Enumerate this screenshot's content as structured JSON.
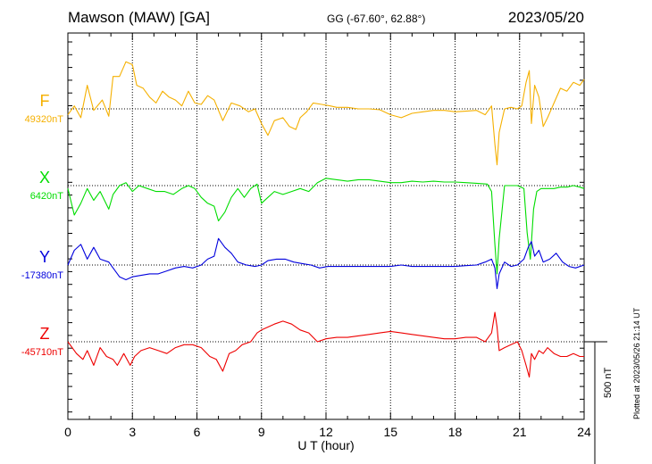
{
  "header": {
    "title": "Mawson (MAW)  [GA]",
    "coords": "GG (-67.60°,  62.88°)",
    "date": "2023/05/20"
  },
  "chart_data": {
    "type": "line",
    "xlabel": "U T (hour)",
    "xlim": [
      0,
      24
    ],
    "x_ticks": [
      "0",
      "3",
      "6",
      "9",
      "12",
      "15",
      "18",
      "21",
      "24"
    ],
    "grid": true,
    "scale_bar": "500 nT",
    "plotted_note": "Plotted at 2023/05/26 21:14 UT",
    "series": [
      {
        "name": "F",
        "baseline_label": "49320nT",
        "color": "#f5b000",
        "points": [
          [
            0,
            -20
          ],
          [
            0.3,
            10
          ],
          [
            0.6,
            -30
          ],
          [
            0.9,
            80
          ],
          [
            1.2,
            -5
          ],
          [
            1.6,
            30
          ],
          [
            1.9,
            -25
          ],
          [
            2.1,
            110
          ],
          [
            2.4,
            110
          ],
          [
            2.7,
            160
          ],
          [
            3.0,
            150
          ],
          [
            3.2,
            80
          ],
          [
            3.5,
            70
          ],
          [
            3.8,
            40
          ],
          [
            4.1,
            20
          ],
          [
            4.4,
            60
          ],
          [
            4.7,
            40
          ],
          [
            5.0,
            30
          ],
          [
            5.3,
            10
          ],
          [
            5.6,
            60
          ],
          [
            5.9,
            20
          ],
          [
            6.2,
            15
          ],
          [
            6.5,
            45
          ],
          [
            6.8,
            30
          ],
          [
            7.2,
            -40
          ],
          [
            7.6,
            20
          ],
          [
            8.0,
            10
          ],
          [
            8.4,
            -10
          ],
          [
            8.7,
            0
          ],
          [
            9.0,
            -50
          ],
          [
            9.3,
            -90
          ],
          [
            9.6,
            -40
          ],
          [
            10.0,
            -30
          ],
          [
            10.3,
            -60
          ],
          [
            10.6,
            -70
          ],
          [
            10.8,
            -30
          ],
          [
            11.1,
            -10
          ],
          [
            11.4,
            20
          ],
          [
            11.8,
            15
          ],
          [
            12.2,
            10
          ],
          [
            12.5,
            5
          ],
          [
            13.0,
            5
          ],
          [
            13.5,
            0
          ],
          [
            14.0,
            0
          ],
          [
            14.5,
            -3
          ],
          [
            15.0,
            -20
          ],
          [
            15.5,
            -30
          ],
          [
            16.0,
            -15
          ],
          [
            16.5,
            -10
          ],
          [
            17.0,
            -5
          ],
          [
            17.5,
            -5
          ],
          [
            18.0,
            -10
          ],
          [
            18.5,
            -8
          ],
          [
            19.0,
            -5
          ],
          [
            19.4,
            -20
          ],
          [
            19.7,
            10
          ],
          [
            19.85,
            -120
          ],
          [
            19.95,
            -190
          ],
          [
            20.05,
            -80
          ],
          [
            20.3,
            0
          ],
          [
            20.6,
            5
          ],
          [
            20.9,
            0
          ],
          [
            21.1,
            10
          ],
          [
            21.3,
            90
          ],
          [
            21.45,
            130
          ],
          [
            21.55,
            -50
          ],
          [
            21.7,
            80
          ],
          [
            21.9,
            40
          ],
          [
            22.1,
            -60
          ],
          [
            22.3,
            -30
          ],
          [
            22.6,
            20
          ],
          [
            22.9,
            70
          ],
          [
            23.2,
            60
          ],
          [
            23.5,
            90
          ],
          [
            23.8,
            80
          ],
          [
            24.0,
            100
          ]
        ]
      },
      {
        "name": "X",
        "baseline_label": "6420nT",
        "color": "#00dd00",
        "points": [
          [
            0,
            -10
          ],
          [
            0.3,
            -100
          ],
          [
            0.6,
            -60
          ],
          [
            0.9,
            -10
          ],
          [
            1.2,
            -50
          ],
          [
            1.5,
            -20
          ],
          [
            1.9,
            -80
          ],
          [
            2.1,
            -30
          ],
          [
            2.4,
            0
          ],
          [
            2.7,
            10
          ],
          [
            3.0,
            -20
          ],
          [
            3.3,
            0
          ],
          [
            3.7,
            -10
          ],
          [
            4.1,
            -20
          ],
          [
            4.5,
            -20
          ],
          [
            4.9,
            -30
          ],
          [
            5.3,
            -10
          ],
          [
            5.6,
            0
          ],
          [
            5.9,
            -10
          ],
          [
            6.2,
            -40
          ],
          [
            6.5,
            -60
          ],
          [
            6.8,
            -70
          ],
          [
            7.0,
            -120
          ],
          [
            7.3,
            -90
          ],
          [
            7.6,
            -40
          ],
          [
            7.9,
            -10
          ],
          [
            8.2,
            -40
          ],
          [
            8.5,
            -10
          ],
          [
            8.8,
            5
          ],
          [
            9.0,
            -60
          ],
          [
            9.3,
            -40
          ],
          [
            9.6,
            -20
          ],
          [
            10.0,
            -30
          ],
          [
            10.4,
            -20
          ],
          [
            10.8,
            -10
          ],
          [
            11.2,
            -20
          ],
          [
            11.6,
            10
          ],
          [
            12.0,
            25
          ],
          [
            12.5,
            20
          ],
          [
            13.0,
            15
          ],
          [
            13.5,
            20
          ],
          [
            14.0,
            20
          ],
          [
            14.5,
            15
          ],
          [
            15.0,
            10
          ],
          [
            15.5,
            10
          ],
          [
            16.0,
            15
          ],
          [
            16.5,
            12
          ],
          [
            17.0,
            15
          ],
          [
            17.5,
            12
          ],
          [
            18.0,
            12
          ],
          [
            18.5,
            10
          ],
          [
            19.0,
            8
          ],
          [
            19.5,
            5
          ],
          [
            19.7,
            -20
          ],
          [
            19.85,
            -200
          ],
          [
            19.95,
            -300
          ],
          [
            20.05,
            -180
          ],
          [
            20.3,
            0
          ],
          [
            20.6,
            0
          ],
          [
            20.9,
            0
          ],
          [
            21.2,
            -10
          ],
          [
            21.35,
            -160
          ],
          [
            21.5,
            -250
          ],
          [
            21.65,
            -80
          ],
          [
            21.8,
            -20
          ],
          [
            22.0,
            -10
          ],
          [
            22.3,
            -10
          ],
          [
            22.6,
            -10
          ],
          [
            22.9,
            -5
          ],
          [
            23.2,
            -5
          ],
          [
            23.5,
            0
          ],
          [
            23.8,
            -5
          ],
          [
            24.0,
            -10
          ]
        ]
      },
      {
        "name": "Y",
        "baseline_label": "-17380nT",
        "color": "#0000dd",
        "points": [
          [
            0,
            0
          ],
          [
            0.3,
            50
          ],
          [
            0.6,
            70
          ],
          [
            0.9,
            20
          ],
          [
            1.2,
            60
          ],
          [
            1.5,
            20
          ],
          [
            1.9,
            10
          ],
          [
            2.1,
            -10
          ],
          [
            2.4,
            -40
          ],
          [
            2.7,
            -50
          ],
          [
            3.0,
            -40
          ],
          [
            3.4,
            -35
          ],
          [
            3.8,
            -30
          ],
          [
            4.2,
            -30
          ],
          [
            4.6,
            -20
          ],
          [
            5.0,
            -10
          ],
          [
            5.4,
            -5
          ],
          [
            5.8,
            -10
          ],
          [
            6.2,
            0
          ],
          [
            6.5,
            20
          ],
          [
            6.8,
            30
          ],
          [
            7.0,
            90
          ],
          [
            7.3,
            60
          ],
          [
            7.6,
            40
          ],
          [
            7.9,
            10
          ],
          [
            8.3,
            0
          ],
          [
            8.7,
            -5
          ],
          [
            9.0,
            0
          ],
          [
            9.3,
            15
          ],
          [
            9.7,
            20
          ],
          [
            10.1,
            20
          ],
          [
            10.5,
            10
          ],
          [
            10.9,
            5
          ],
          [
            11.3,
            0
          ],
          [
            11.7,
            -10
          ],
          [
            12.1,
            -5
          ],
          [
            12.5,
            -5
          ],
          [
            13.0,
            -5
          ],
          [
            13.5,
            -5
          ],
          [
            14.0,
            -5
          ],
          [
            14.5,
            -5
          ],
          [
            15.0,
            -5
          ],
          [
            15.5,
            0
          ],
          [
            16.0,
            -5
          ],
          [
            16.5,
            -5
          ],
          [
            17.0,
            -5
          ],
          [
            17.5,
            -5
          ],
          [
            18.0,
            -5
          ],
          [
            18.5,
            -2
          ],
          [
            19.0,
            0
          ],
          [
            19.4,
            10
          ],
          [
            19.7,
            20
          ],
          [
            19.85,
            -10
          ],
          [
            19.95,
            -80
          ],
          [
            20.05,
            -30
          ],
          [
            20.3,
            10
          ],
          [
            20.6,
            -5
          ],
          [
            20.9,
            0
          ],
          [
            21.2,
            20
          ],
          [
            21.4,
            60
          ],
          [
            21.55,
            80
          ],
          [
            21.7,
            30
          ],
          [
            21.9,
            50
          ],
          [
            22.1,
            10
          ],
          [
            22.4,
            20
          ],
          [
            22.7,
            40
          ],
          [
            23.0,
            10
          ],
          [
            23.3,
            -5
          ],
          [
            23.6,
            -10
          ],
          [
            24.0,
            0
          ]
        ]
      },
      {
        "name": "Z",
        "baseline_label": "-45710nT",
        "color": "#ee0000",
        "points": [
          [
            0,
            0
          ],
          [
            0.2,
            -20
          ],
          [
            0.4,
            -40
          ],
          [
            0.7,
            -60
          ],
          [
            0.9,
            -30
          ],
          [
            1.2,
            -80
          ],
          [
            1.5,
            -20
          ],
          [
            1.8,
            -50
          ],
          [
            2.1,
            -60
          ],
          [
            2.3,
            -80
          ],
          [
            2.6,
            -40
          ],
          [
            2.9,
            -80
          ],
          [
            3.1,
            -50
          ],
          [
            3.4,
            -30
          ],
          [
            3.8,
            -20
          ],
          [
            4.2,
            -30
          ],
          [
            4.6,
            -40
          ],
          [
            5.0,
            -20
          ],
          [
            5.4,
            -10
          ],
          [
            5.8,
            -10
          ],
          [
            6.2,
            -20
          ],
          [
            6.6,
            -50
          ],
          [
            6.9,
            -60
          ],
          [
            7.2,
            -100
          ],
          [
            7.5,
            -40
          ],
          [
            7.8,
            -30
          ],
          [
            8.1,
            -10
          ],
          [
            8.5,
            0
          ],
          [
            8.8,
            30
          ],
          [
            9.0,
            40
          ],
          [
            9.3,
            50
          ],
          [
            9.6,
            60
          ],
          [
            10.0,
            70
          ],
          [
            10.4,
            60
          ],
          [
            10.8,
            40
          ],
          [
            11.2,
            30
          ],
          [
            11.6,
            0
          ],
          [
            12.0,
            10
          ],
          [
            12.5,
            15
          ],
          [
            13.0,
            15
          ],
          [
            13.5,
            20
          ],
          [
            14.0,
            25
          ],
          [
            14.5,
            30
          ],
          [
            15.0,
            35
          ],
          [
            15.5,
            30
          ],
          [
            16.0,
            25
          ],
          [
            16.5,
            20
          ],
          [
            17.0,
            15
          ],
          [
            17.5,
            10
          ],
          [
            18.0,
            10
          ],
          [
            18.5,
            15
          ],
          [
            19.0,
            15
          ],
          [
            19.4,
            0
          ],
          [
            19.7,
            30
          ],
          [
            19.85,
            100
          ],
          [
            19.95,
            50
          ],
          [
            20.05,
            -30
          ],
          [
            20.3,
            -20
          ],
          [
            20.6,
            -10
          ],
          [
            20.9,
            0
          ],
          [
            21.1,
            -30
          ],
          [
            21.3,
            -80
          ],
          [
            21.45,
            -120
          ],
          [
            21.55,
            -40
          ],
          [
            21.7,
            -60
          ],
          [
            21.9,
            -30
          ],
          [
            22.1,
            -40
          ],
          [
            22.3,
            -20
          ],
          [
            22.6,
            -40
          ],
          [
            22.9,
            -50
          ],
          [
            23.2,
            -50
          ],
          [
            23.5,
            -40
          ],
          [
            23.8,
            -50
          ],
          [
            24.0,
            -50
          ]
        ]
      }
    ]
  }
}
